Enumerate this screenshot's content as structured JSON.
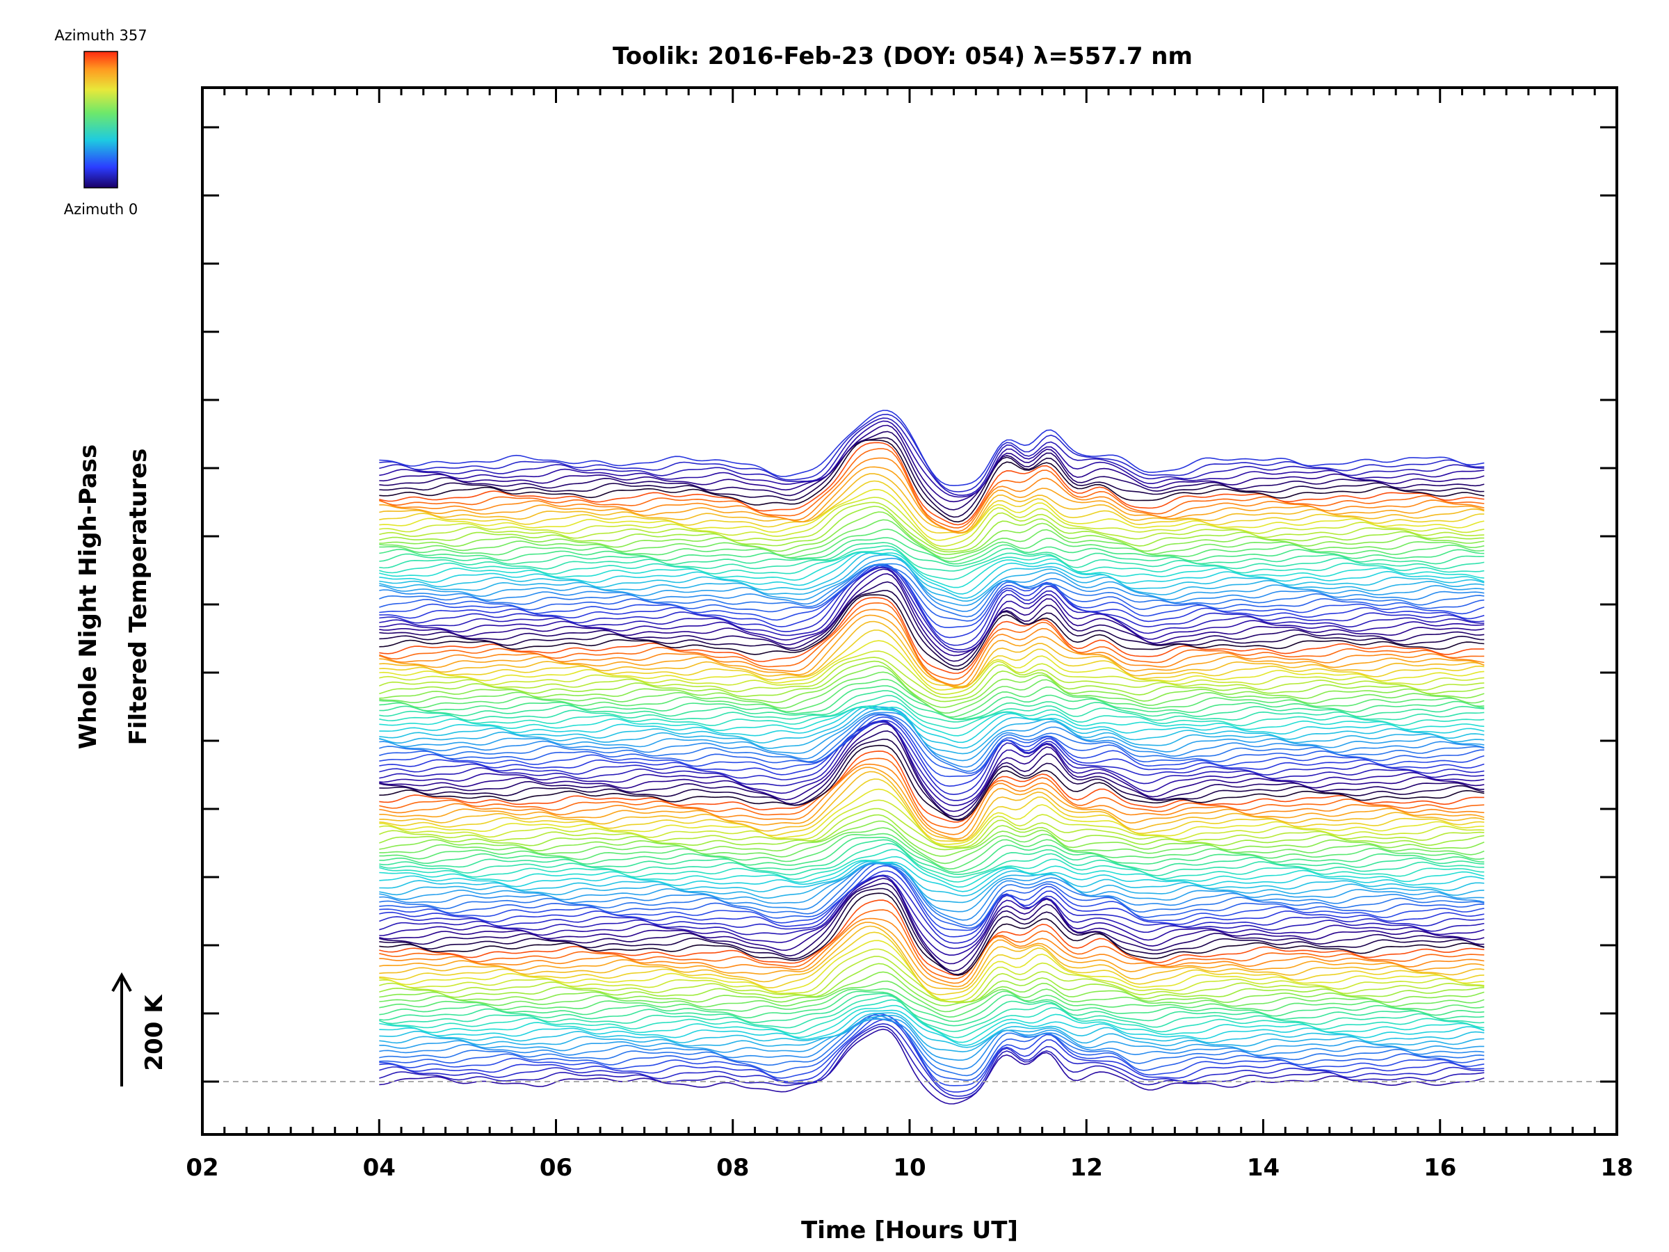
{
  "chart_data": {
    "type": "line",
    "title": "Toolik: 2016-Feb-23 (DOY: 054) λ=557.7 nm",
    "xlabel": "Time [Hours UT]",
    "ylabel_line1": "Whole Night High-Pass",
    "ylabel_line2": "Filtered Temperatures",
    "xlim": [
      2,
      18
    ],
    "x_ticks": [
      "02",
      "04",
      "06",
      "08",
      "10",
      "12",
      "14",
      "16",
      "18"
    ],
    "x_tick_values": [
      2,
      4,
      6,
      8,
      10,
      12,
      14,
      16,
      18
    ],
    "x_data_range": [
      4.0,
      16.5
    ],
    "n_traces": 140,
    "trace_offset_kelvin": 15,
    "scale_bar_label": "200 K",
    "colorbar": {
      "top_label": "Azimuth 357",
      "bottom_label": "Azimuth 0",
      "azimuth_range": [
        0,
        357
      ]
    },
    "colors": {
      "axes": "#000000",
      "baseline": "#aaaaaa"
    }
  }
}
